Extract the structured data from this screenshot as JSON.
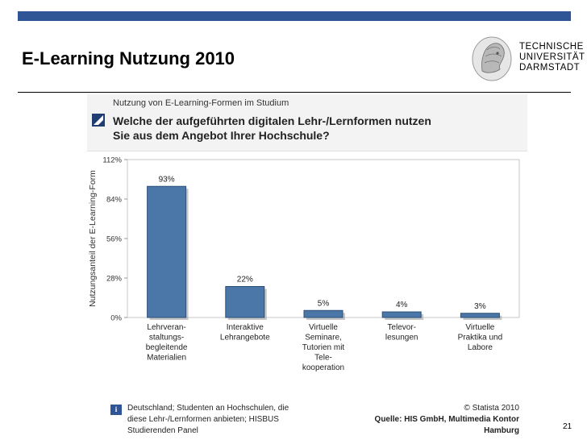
{
  "slide": {
    "title": "E-Learning Nutzung 2010",
    "page_number": "21",
    "accent_color": "#2f5597"
  },
  "logo": {
    "lines": [
      "TECHNISCHE",
      "UNIVERSITÄT",
      "DARMSTADT"
    ]
  },
  "panel": {
    "subtitle": "Nutzung von E-Learning-Formen im Studium",
    "question_lines": [
      "Welche der aufgeführten digitalen Lehr-/Lernformen nutzen",
      "Sie aus dem Angebot Ihrer Hochschule?"
    ]
  },
  "chart_data": {
    "type": "bar",
    "ylabel": "Nutzungsanteil der E-Learning-Form",
    "ylim": [
      0,
      112
    ],
    "yticks": [
      0,
      28,
      56,
      84,
      112
    ],
    "ytick_labels": [
      "0%",
      "28%",
      "56%",
      "84%",
      "112%"
    ],
    "grid": false,
    "bar_color": "#4a77a8",
    "categories": [
      [
        "Lehrveran-",
        "staltungs-",
        "begleitende",
        "Materialien"
      ],
      [
        "Interaktive",
        "Lehrangebote"
      ],
      [
        "Virtuelle",
        "Seminare,",
        "Tutorien mit",
        "Tele-",
        "kooperation"
      ],
      [
        "Televor-",
        "lesungen"
      ],
      [
        "Virtuelle",
        "Praktika und",
        "Labore"
      ]
    ],
    "values": [
      93,
      22,
      5,
      4,
      3
    ],
    "value_labels": [
      "93%",
      "22%",
      "5%",
      "4%",
      "3%"
    ]
  },
  "footer": {
    "note_lines": [
      "Deutschland; Studenten an Hochschulen, die",
      "diese Lehr-/Lernformen anbieten; HISBUS",
      "Studierenden Panel"
    ],
    "copyright": "© Statista 2010",
    "source_lines": [
      "Quelle: HIS GmbH, Multimedia Kontor",
      "Hamburg"
    ]
  }
}
